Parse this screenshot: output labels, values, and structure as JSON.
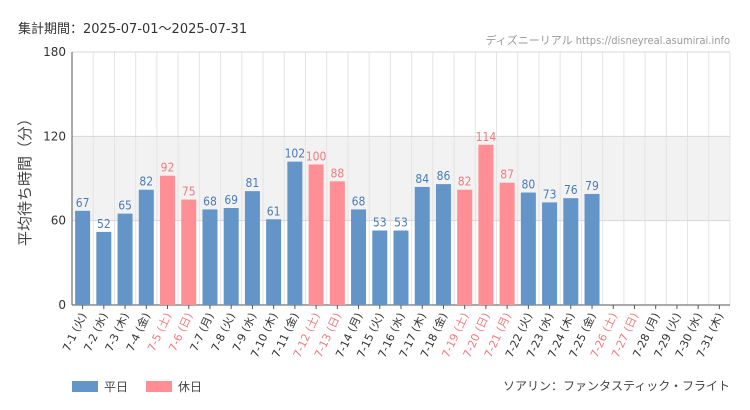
{
  "header": {
    "period_label": "集計期間：2025-07-01〜2025-07-31",
    "source": "ディズニーリアル https://disneyreal.asumirai.info"
  },
  "footer": {
    "attraction": "ソアリン：ファンタスティック・フライト"
  },
  "colors": {
    "weekday": "#6495c8",
    "holiday": "#ff8f94",
    "holiday_text": "#f07b80",
    "weekday_text": "#4a7cb5",
    "band": "#f2f2f2",
    "grid": "#e4e4e4"
  },
  "chart_data": {
    "type": "bar",
    "ylabel": "平均待ち時間（分）",
    "ylim": [
      0,
      180
    ],
    "yticks": [
      0,
      60,
      120,
      180
    ],
    "band": [
      60,
      120
    ],
    "grid": true,
    "legend_position": "bottom-left",
    "legend": [
      {
        "name": "平日",
        "kind": "weekday"
      },
      {
        "name": "休日",
        "kind": "holiday"
      }
    ],
    "categories": [
      "7-1 (火)",
      "7-2 (水)",
      "7-3 (木)",
      "7-4 (金)",
      "7-5 (土)",
      "7-6 (日)",
      "7-7 (月)",
      "7-8 (火)",
      "7-9 (水)",
      "7-10 (木)",
      "7-11 (金)",
      "7-12 (土)",
      "7-13 (日)",
      "7-14 (月)",
      "7-15 (火)",
      "7-16 (水)",
      "7-17 (木)",
      "7-18 (金)",
      "7-19 (土)",
      "7-20 (日)",
      "7-21 (月)",
      "7-22 (火)",
      "7-23 (水)",
      "7-24 (木)",
      "7-25 (金)",
      "7-26 (土)",
      "7-27 (日)",
      "7-28 (月)",
      "7-29 (火)",
      "7-30 (水)",
      "7-31 (木)"
    ],
    "day_type": [
      "weekday",
      "weekday",
      "weekday",
      "weekday",
      "holiday",
      "holiday",
      "weekday",
      "weekday",
      "weekday",
      "weekday",
      "weekday",
      "holiday",
      "holiday",
      "weekday",
      "weekday",
      "weekday",
      "weekday",
      "weekday",
      "holiday",
      "holiday",
      "holiday",
      "weekday",
      "weekday",
      "weekday",
      "weekday",
      "holiday",
      "holiday",
      "weekday",
      "weekday",
      "weekday",
      "weekday"
    ],
    "values": [
      67,
      52,
      65,
      82,
      92,
      75,
      68,
      69,
      81,
      61,
      102,
      100,
      88,
      68,
      53,
      53,
      84,
      86,
      82,
      114,
      87,
      80,
      73,
      76,
      79,
      null,
      null,
      null,
      null,
      null,
      null
    ]
  }
}
